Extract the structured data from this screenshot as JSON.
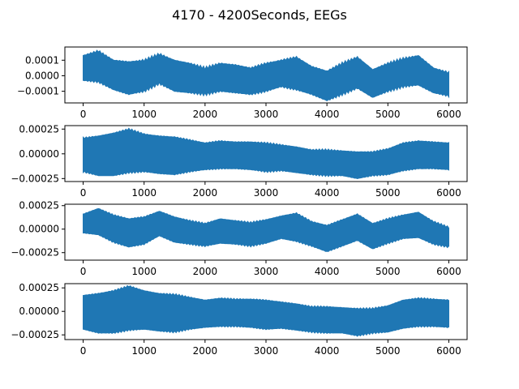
{
  "figure": {
    "title": "4170 - 4200Seconds, EEGs",
    "series_color": "#1f77b4"
  },
  "chart_data": [
    {
      "type": "line",
      "title": "",
      "xlabel": "",
      "ylabel": "",
      "xlim": [
        -300,
        6300
      ],
      "ylim": [
        -0.000175,
        0.000185
      ],
      "grid": false,
      "xticks": [
        0,
        1000,
        2000,
        3000,
        4000,
        5000,
        6000
      ],
      "xtick_labels": [
        "0",
        "1000",
        "2000",
        "3000",
        "4000",
        "5000",
        "6000"
      ],
      "yticks": [
        0.0001,
        0.0,
        -0.0001
      ],
      "ytick_labels": [
        "0.0001",
        "0.0000",
        "−0.0001"
      ],
      "series": [
        {
          "x": [
            0,
            250,
            500,
            750,
            1000,
            1250,
            1500,
            1750,
            2000,
            2250,
            2500,
            2750,
            3000,
            3250,
            3500,
            3750,
            4000,
            4250,
            4500,
            4750,
            5000,
            5250,
            5500,
            5750,
            6000
          ],
          "upper": [
            0.00013,
            0.00016,
            0.0001,
            9e-05,
            0.0001,
            0.00014,
            0.0001,
            8e-05,
            5e-05,
            8e-05,
            7e-05,
            5e-05,
            8e-05,
            0.0001,
            0.00012,
            6e-05,
            3e-05,
            8e-05,
            0.00012,
            4e-05,
            8e-05,
            0.00011,
            0.00013,
            5e-05,
            2e-05
          ],
          "lower": [
            -3e-05,
            -4e-05,
            -9e-05,
            -0.00012,
            -0.0001,
            -5e-05,
            -0.0001,
            -0.00011,
            -0.00012,
            -0.0001,
            -0.00011,
            -0.00012,
            -0.0001,
            -7e-05,
            -9e-05,
            -0.00012,
            -0.00016,
            -0.00012,
            -8e-05,
            -0.00014,
            -0.0001,
            -7e-05,
            -6e-05,
            -0.00011,
            -0.00013
          ]
        }
      ]
    },
    {
      "type": "line",
      "title": "",
      "xlabel": "",
      "ylabel": "",
      "xlim": [
        -300,
        6300
      ],
      "ylim": [
        -0.00028,
        0.000285
      ],
      "grid": false,
      "xticks": [
        0,
        1000,
        2000,
        3000,
        4000,
        5000,
        6000
      ],
      "xtick_labels": [
        "0",
        "1000",
        "2000",
        "3000",
        "4000",
        "5000",
        "6000"
      ],
      "yticks": [
        0.00025,
        0.0,
        -0.00025
      ],
      "ytick_labels": [
        "0.00025",
        "0.00000",
        "−0.00025"
      ],
      "series": [
        {
          "x": [
            0,
            250,
            500,
            750,
            1000,
            1250,
            1500,
            1750,
            2000,
            2250,
            2500,
            2750,
            3000,
            3250,
            3500,
            3750,
            4000,
            4250,
            4500,
            4750,
            5000,
            5250,
            5500,
            5750,
            6000
          ],
          "upper": [
            0.00016,
            0.00018,
            0.00021,
            0.00025,
            0.0002,
            0.00018,
            0.00017,
            0.00014,
            0.00011,
            0.00013,
            0.00012,
            0.00012,
            0.00011,
            9e-05,
            7e-05,
            4e-05,
            4e-05,
            3e-05,
            2e-05,
            2e-05,
            5e-05,
            0.00011,
            0.00013,
            0.00012,
            0.00011
          ],
          "lower": [
            -0.00018,
            -0.00022,
            -0.00022,
            -0.00019,
            -0.00018,
            -0.0002,
            -0.00021,
            -0.00018,
            -0.00016,
            -0.00015,
            -0.00015,
            -0.00016,
            -0.00018,
            -0.00017,
            -0.00019,
            -0.00021,
            -0.00022,
            -0.00022,
            -0.00025,
            -0.00022,
            -0.00021,
            -0.00017,
            -0.00015,
            -0.00015,
            -0.00016
          ]
        }
      ]
    },
    {
      "type": "line",
      "title": "",
      "xlabel": "",
      "ylabel": "",
      "xlim": [
        -300,
        6300
      ],
      "ylim": [
        -0.00033,
        0.000265
      ],
      "grid": false,
      "xticks": [
        0,
        1000,
        2000,
        3000,
        4000,
        5000,
        6000
      ],
      "xtick_labels": [
        "0",
        "1000",
        "2000",
        "3000",
        "4000",
        "5000",
        "6000"
      ],
      "yticks": [
        0.00025,
        0.0,
        -0.00025
      ],
      "ytick_labels": [
        "0.00025",
        "0.00000",
        "−0.00025"
      ],
      "series": [
        {
          "x": [
            0,
            250,
            500,
            750,
            1000,
            1250,
            1500,
            1750,
            2000,
            2250,
            2500,
            2750,
            3000,
            3250,
            3500,
            3750,
            4000,
            4250,
            4500,
            4750,
            5000,
            5250,
            5500,
            5750,
            6000
          ],
          "upper": [
            0.00016,
            0.00022,
            0.00015,
            0.00011,
            0.00013,
            0.00019,
            0.00013,
            9e-05,
            6e-05,
            0.00011,
            9e-05,
            7e-05,
            0.0001,
            0.00014,
            0.00017,
            8e-05,
            4e-05,
            0.0001,
            0.00016,
            6e-05,
            0.00011,
            0.00015,
            0.00018,
            8e-05,
            2e-05
          ],
          "lower": [
            -4e-05,
            -6e-05,
            -0.00014,
            -0.00019,
            -0.00016,
            -7e-05,
            -0.00014,
            -0.00016,
            -0.00018,
            -0.00015,
            -0.00016,
            -0.00018,
            -0.00015,
            -0.0001,
            -0.00013,
            -0.00018,
            -0.00024,
            -0.00018,
            -0.00012,
            -0.00021,
            -0.00015,
            -0.0001,
            -9e-05,
            -0.00016,
            -0.00019
          ]
        }
      ]
    },
    {
      "type": "line",
      "title": "",
      "xlabel": "",
      "ylabel": "",
      "xlim": [
        -300,
        6300
      ],
      "ylim": [
        -0.0003,
        0.000295
      ],
      "grid": false,
      "xticks": [
        0,
        1000,
        2000,
        3000,
        4000,
        5000,
        6000
      ],
      "xtick_labels": [
        "0",
        "1000",
        "2000",
        "3000",
        "4000",
        "5000",
        "6000"
      ],
      "yticks": [
        0.00025,
        0.0,
        -0.00025
      ],
      "ytick_labels": [
        "0.00025",
        "0.00000",
        "−0.00025"
      ],
      "series": [
        {
          "x": [
            0,
            250,
            500,
            750,
            1000,
            1250,
            1500,
            1750,
            2000,
            2250,
            2500,
            2750,
            3000,
            3250,
            3500,
            3750,
            4000,
            4250,
            4500,
            4750,
            5000,
            5250,
            5500,
            5750,
            6000
          ],
          "upper": [
            0.00017,
            0.00019,
            0.00022,
            0.00027,
            0.00022,
            0.00019,
            0.00018,
            0.00015,
            0.00012,
            0.00014,
            0.00013,
            0.00013,
            0.00012,
            0.0001,
            8e-05,
            5e-05,
            5e-05,
            4e-05,
            3e-05,
            3e-05,
            6e-05,
            0.00012,
            0.00014,
            0.00013,
            0.00012
          ],
          "lower": [
            -0.00019,
            -0.00023,
            -0.00023,
            -0.0002,
            -0.00019,
            -0.00021,
            -0.00022,
            -0.00019,
            -0.00017,
            -0.00016,
            -0.00016,
            -0.00017,
            -0.00019,
            -0.00018,
            -0.0002,
            -0.00022,
            -0.00023,
            -0.00023,
            -0.00026,
            -0.00023,
            -0.00022,
            -0.00018,
            -0.00016,
            -0.00016,
            -0.00017
          ]
        }
      ]
    }
  ]
}
